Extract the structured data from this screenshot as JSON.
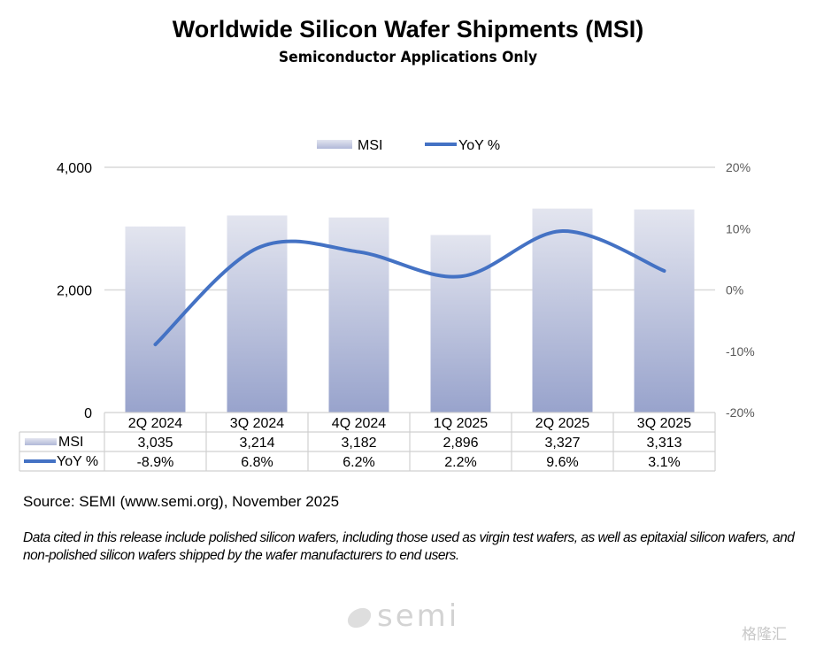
{
  "chart_data": {
    "type": "bar+line",
    "title": "Worldwide Silicon Wafer Shipments (MSI)",
    "subtitle": "Semiconductor Applications Only",
    "categories": [
      "2Q 2024",
      "3Q 2024",
      "4Q 2024",
      "1Q 2025",
      "2Q 2025",
      "3Q 2025"
    ],
    "series": [
      {
        "name": "MSI",
        "type": "bar",
        "axis": "left",
        "values": [
          3035,
          3214,
          3182,
          2896,
          3327,
          3313
        ],
        "labels": [
          "3,035",
          "3,214",
          "3,182",
          "2,896",
          "3,327",
          "3,313"
        ],
        "color_top": "#e3e5ef",
        "color_bottom": "#98a3cc"
      },
      {
        "name": "YoY %",
        "type": "line",
        "axis": "right",
        "values": [
          -8.9,
          6.8,
          6.2,
          2.2,
          9.6,
          3.1
        ],
        "labels": [
          "-8.9%",
          "6.8%",
          "6.2%",
          "2.2%",
          "9.6%",
          "3.1%"
        ],
        "color": "#4472c4"
      }
    ],
    "y_left": {
      "range": [
        0,
        4000
      ],
      "ticks": [
        0,
        2000,
        4000
      ],
      "tick_labels": [
        "0",
        "2,000",
        "4,000"
      ]
    },
    "y_right": {
      "range": [
        -20,
        20
      ],
      "ticks": [
        -20,
        -10,
        0,
        10,
        20
      ],
      "tick_labels": [
        "-20%",
        "-10%",
        "0%",
        "10%",
        "20%"
      ]
    },
    "grid": true,
    "legend": {
      "position": "top",
      "entries": [
        "MSI",
        "YoY %"
      ]
    },
    "data_table": true
  },
  "footer": {
    "source": "Source: SEMI (www.semi.org), November 2025",
    "note": "Data cited in this release include polished silicon wafers, including those used as virgin test wafers, as well as epitaxial silicon wafers, and non-polished silicon wafers shipped by the wafer manufacturers to end users.",
    "logo_text": "semi",
    "watermark": "格隆汇"
  }
}
